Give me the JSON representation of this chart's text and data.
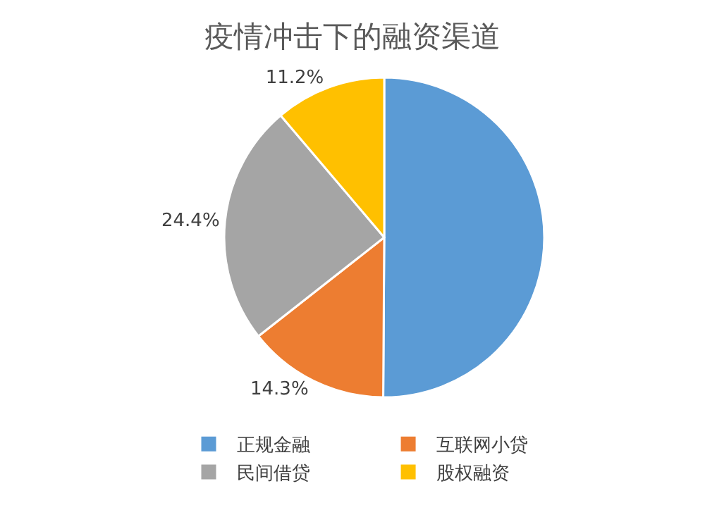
{
  "chart_data": {
    "type": "pie",
    "title": "疫情冲击下的融资渠道",
    "categories": [
      "正规金融",
      "互联网小贷",
      "民间借贷",
      "股权融资"
    ],
    "values": [
      50.1,
      14.3,
      24.4,
      11.2
    ],
    "value_labels": [
      null,
      "14.3%",
      "24.4%",
      "11.2%"
    ],
    "colors": [
      "#5b9bd5",
      "#ed7d31",
      "#a5a5a5",
      "#ffc000"
    ],
    "legend": "bottom"
  }
}
